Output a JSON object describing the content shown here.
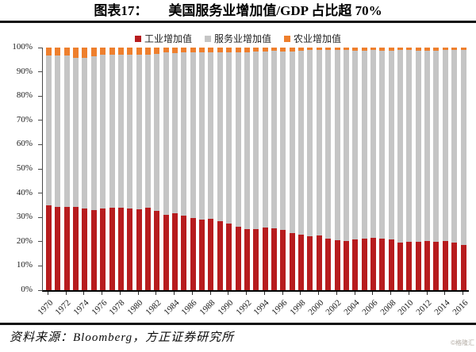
{
  "header": {
    "figure_label": "图表17：",
    "title": "美国服务业增加值/GDP 占比超 70%"
  },
  "legend": [
    {
      "key": "industry",
      "label": "工业增加值",
      "color": "#B71C1E"
    },
    {
      "key": "services",
      "label": "服务业增加值",
      "color": "#C5C5C5"
    },
    {
      "key": "agriculture",
      "label": "农业增加值",
      "color": "#EE7F2D"
    }
  ],
  "footer": {
    "source": "资料来源：Bloomberg，方正证券研究所",
    "watermark": "©格隆汇"
  },
  "chart_data": {
    "type": "bar",
    "stacked": true,
    "title": "美国服务业增加值/GDP 占比超 70%",
    "unit": "% of GDP",
    "grid": false,
    "legend_position": "top",
    "ylim": [
      0,
      100
    ],
    "y_ticks": [
      "0%",
      "10%",
      "20%",
      "30%",
      "40%",
      "50%",
      "60%",
      "70%",
      "80%",
      "90%",
      "100%"
    ],
    "x_tick_step": 2,
    "categories": [
      1970,
      1971,
      1972,
      1973,
      1974,
      1975,
      1976,
      1977,
      1978,
      1979,
      1980,
      1981,
      1982,
      1983,
      1984,
      1985,
      1986,
      1987,
      1988,
      1989,
      1990,
      1991,
      1992,
      1993,
      1994,
      1995,
      1996,
      1997,
      1998,
      1999,
      2000,
      2001,
      2002,
      2003,
      2004,
      2005,
      2006,
      2007,
      2008,
      2009,
      2010,
      2011,
      2012,
      2013,
      2014,
      2015,
      2016
    ],
    "series": [
      {
        "key": "industry",
        "name": "工业增加值",
        "color": "#B71C1E",
        "values": [
          35.0,
          34.2,
          34.2,
          34.2,
          33.8,
          33.0,
          33.5,
          34.0,
          33.9,
          33.5,
          33.3,
          33.9,
          32.7,
          31.2,
          31.7,
          30.7,
          29.8,
          29.1,
          29.3,
          28.3,
          27.5,
          26.1,
          25.3,
          25.1,
          25.7,
          25.5,
          24.8,
          23.4,
          22.8,
          22.2,
          22.4,
          21.4,
          20.7,
          20.1,
          20.8,
          21.1,
          21.6,
          21.3,
          20.9,
          19.5,
          19.8,
          20.0,
          20.2,
          20.0,
          20.2,
          19.5,
          18.7
        ]
      },
      {
        "key": "services",
        "name": "服务业增加值",
        "color": "#C5C5C5",
        "values": [
          61.7,
          62.6,
          62.6,
          61.6,
          61.9,
          63.4,
          63.4,
          63.2,
          63.2,
          63.4,
          63.9,
          63.1,
          64.7,
          66.7,
          66.0,
          67.3,
          68.3,
          69.1,
          68.8,
          69.7,
          70.6,
          72.1,
          72.9,
          73.3,
          72.7,
          73.1,
          73.6,
          75.1,
          76.0,
          76.7,
          76.5,
          77.5,
          78.3,
          78.8,
          77.9,
          77.7,
          77.3,
          77.5,
          77.9,
          79.5,
          79.1,
          78.7,
          78.6,
          78.7,
          78.7,
          79.5,
          80.4
        ]
      },
      {
        "key": "agriculture",
        "name": "农业增加值",
        "color": "#EE7F2D",
        "values": [
          3.3,
          3.2,
          3.2,
          4.2,
          4.3,
          3.6,
          3.1,
          2.8,
          2.9,
          3.1,
          2.8,
          3.0,
          2.6,
          2.1,
          2.3,
          2.0,
          1.9,
          1.8,
          1.9,
          2.0,
          1.9,
          1.8,
          1.8,
          1.6,
          1.6,
          1.4,
          1.6,
          1.5,
          1.2,
          1.1,
          1.1,
          1.1,
          1.0,
          1.1,
          1.3,
          1.2,
          1.1,
          1.2,
          1.2,
          1.0,
          1.1,
          1.3,
          1.2,
          1.3,
          1.1,
          1.0,
          0.9
        ]
      }
    ]
  }
}
